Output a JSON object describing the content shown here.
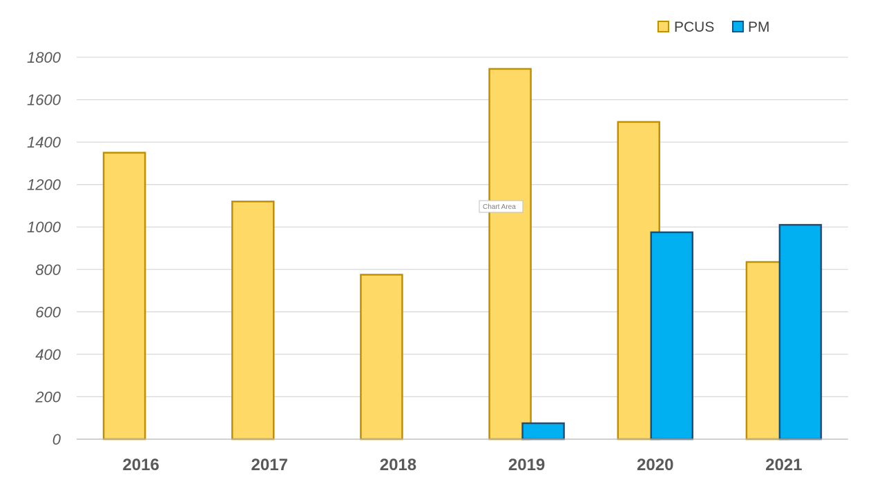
{
  "chart_data": {
    "type": "bar",
    "categories": [
      "2016",
      "2017",
      "2018",
      "2019",
      "2020",
      "2021"
    ],
    "series": [
      {
        "name": "PCUS",
        "values": [
          1350,
          1120,
          775,
          1745,
          1495,
          835
        ],
        "fill": "#FFD966",
        "stroke": "#BF9000"
      },
      {
        "name": "PM",
        "values": [
          null,
          null,
          null,
          75,
          975,
          1010
        ],
        "fill": "#00B0F0",
        "stroke": "#1F4E79"
      }
    ],
    "ylim": [
      0,
      1800
    ],
    "yticks": [
      "0",
      "200",
      "400",
      "600",
      "800",
      "1000",
      "1200",
      "1400",
      "1600",
      "1800"
    ],
    "grid": true,
    "legend_position": "top-right",
    "gridline_color": "#D9D9D9",
    "tooltip": "Chart Area"
  }
}
